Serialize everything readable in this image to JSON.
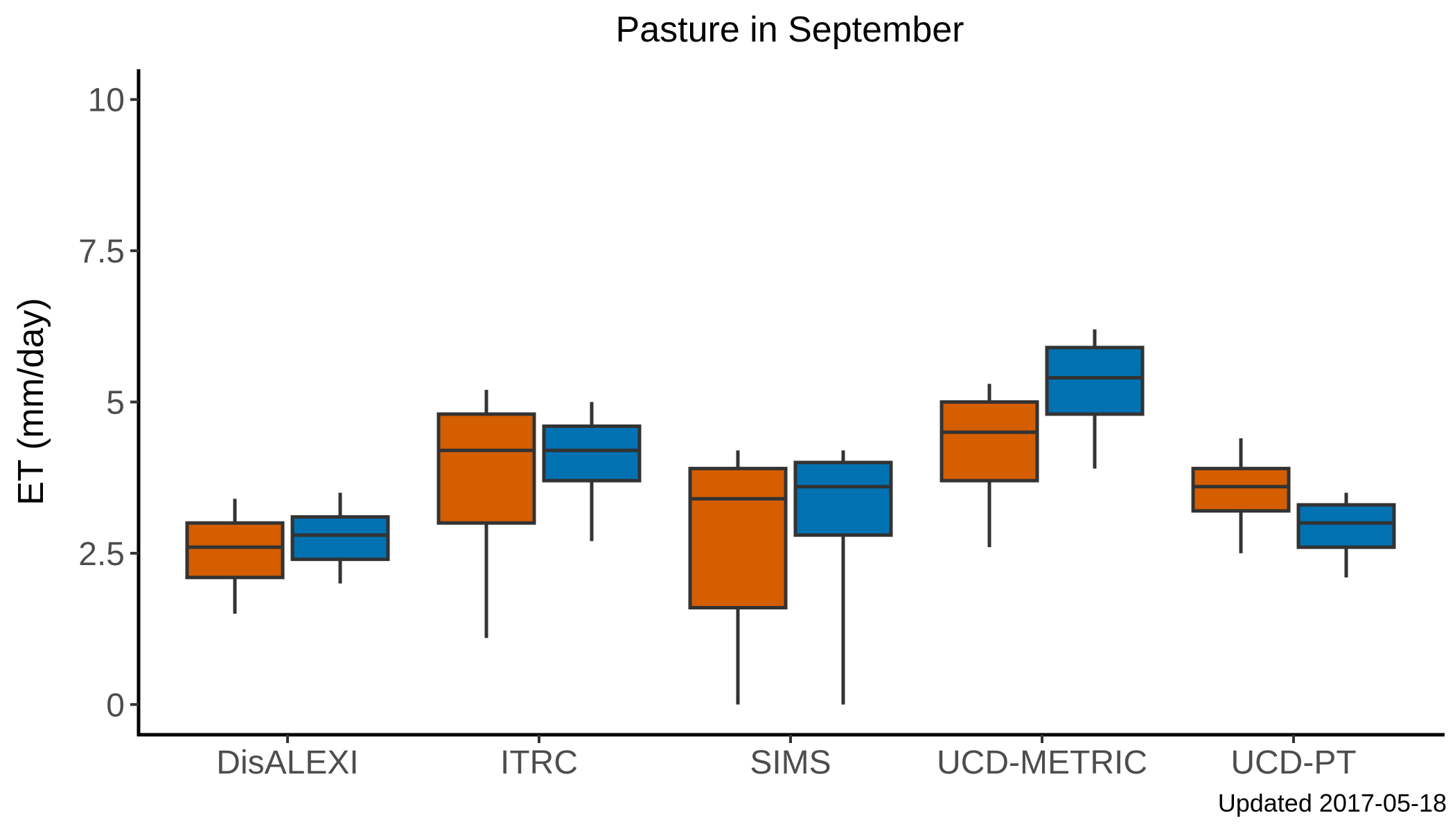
{
  "chart_data": {
    "type": "box",
    "title": "Pasture in September",
    "xlabel": "",
    "ylabel": "ET (mm/day)",
    "ylim": [
      -0.5,
      10.5
    ],
    "yticks": [
      0,
      2.5,
      5,
      7.5,
      10
    ],
    "ytick_labels": [
      "0",
      "2.5",
      "5",
      "7.5",
      "10"
    ],
    "grid": false,
    "categories": [
      "DisALEXI",
      "ITRC",
      "SIMS",
      "UCD-METRIC",
      "UCD-PT"
    ],
    "series": [
      {
        "color": "#D55E00",
        "boxes": [
          {
            "min": 1.5,
            "q1": 2.1,
            "median": 2.6,
            "q3": 3.0,
            "max": 3.4
          },
          {
            "min": 1.1,
            "q1": 3.0,
            "median": 4.2,
            "q3": 4.8,
            "max": 5.2
          },
          {
            "min": 0.0,
            "q1": 1.6,
            "median": 3.4,
            "q3": 3.9,
            "max": 4.2
          },
          {
            "min": 2.6,
            "q1": 3.7,
            "median": 4.5,
            "q3": 5.0,
            "max": 5.3
          },
          {
            "min": 2.5,
            "q1": 3.2,
            "median": 3.6,
            "q3": 3.9,
            "max": 4.4
          }
        ]
      },
      {
        "color": "#0072B2",
        "boxes": [
          {
            "min": 2.0,
            "q1": 2.4,
            "median": 2.8,
            "q3": 3.1,
            "max": 3.5
          },
          {
            "min": 2.7,
            "q1": 3.7,
            "median": 4.2,
            "q3": 4.6,
            "max": 5.0
          },
          {
            "min": 0.0,
            "q1": 2.8,
            "median": 3.6,
            "q3": 4.0,
            "max": 4.2
          },
          {
            "min": 3.9,
            "q1": 4.8,
            "median": 5.4,
            "q3": 5.9,
            "max": 6.2
          },
          {
            "min": 2.1,
            "q1": 2.6,
            "median": 3.0,
            "q3": 3.3,
            "max": 3.5
          }
        ]
      }
    ]
  },
  "footer": "Updated  2017-05-18"
}
